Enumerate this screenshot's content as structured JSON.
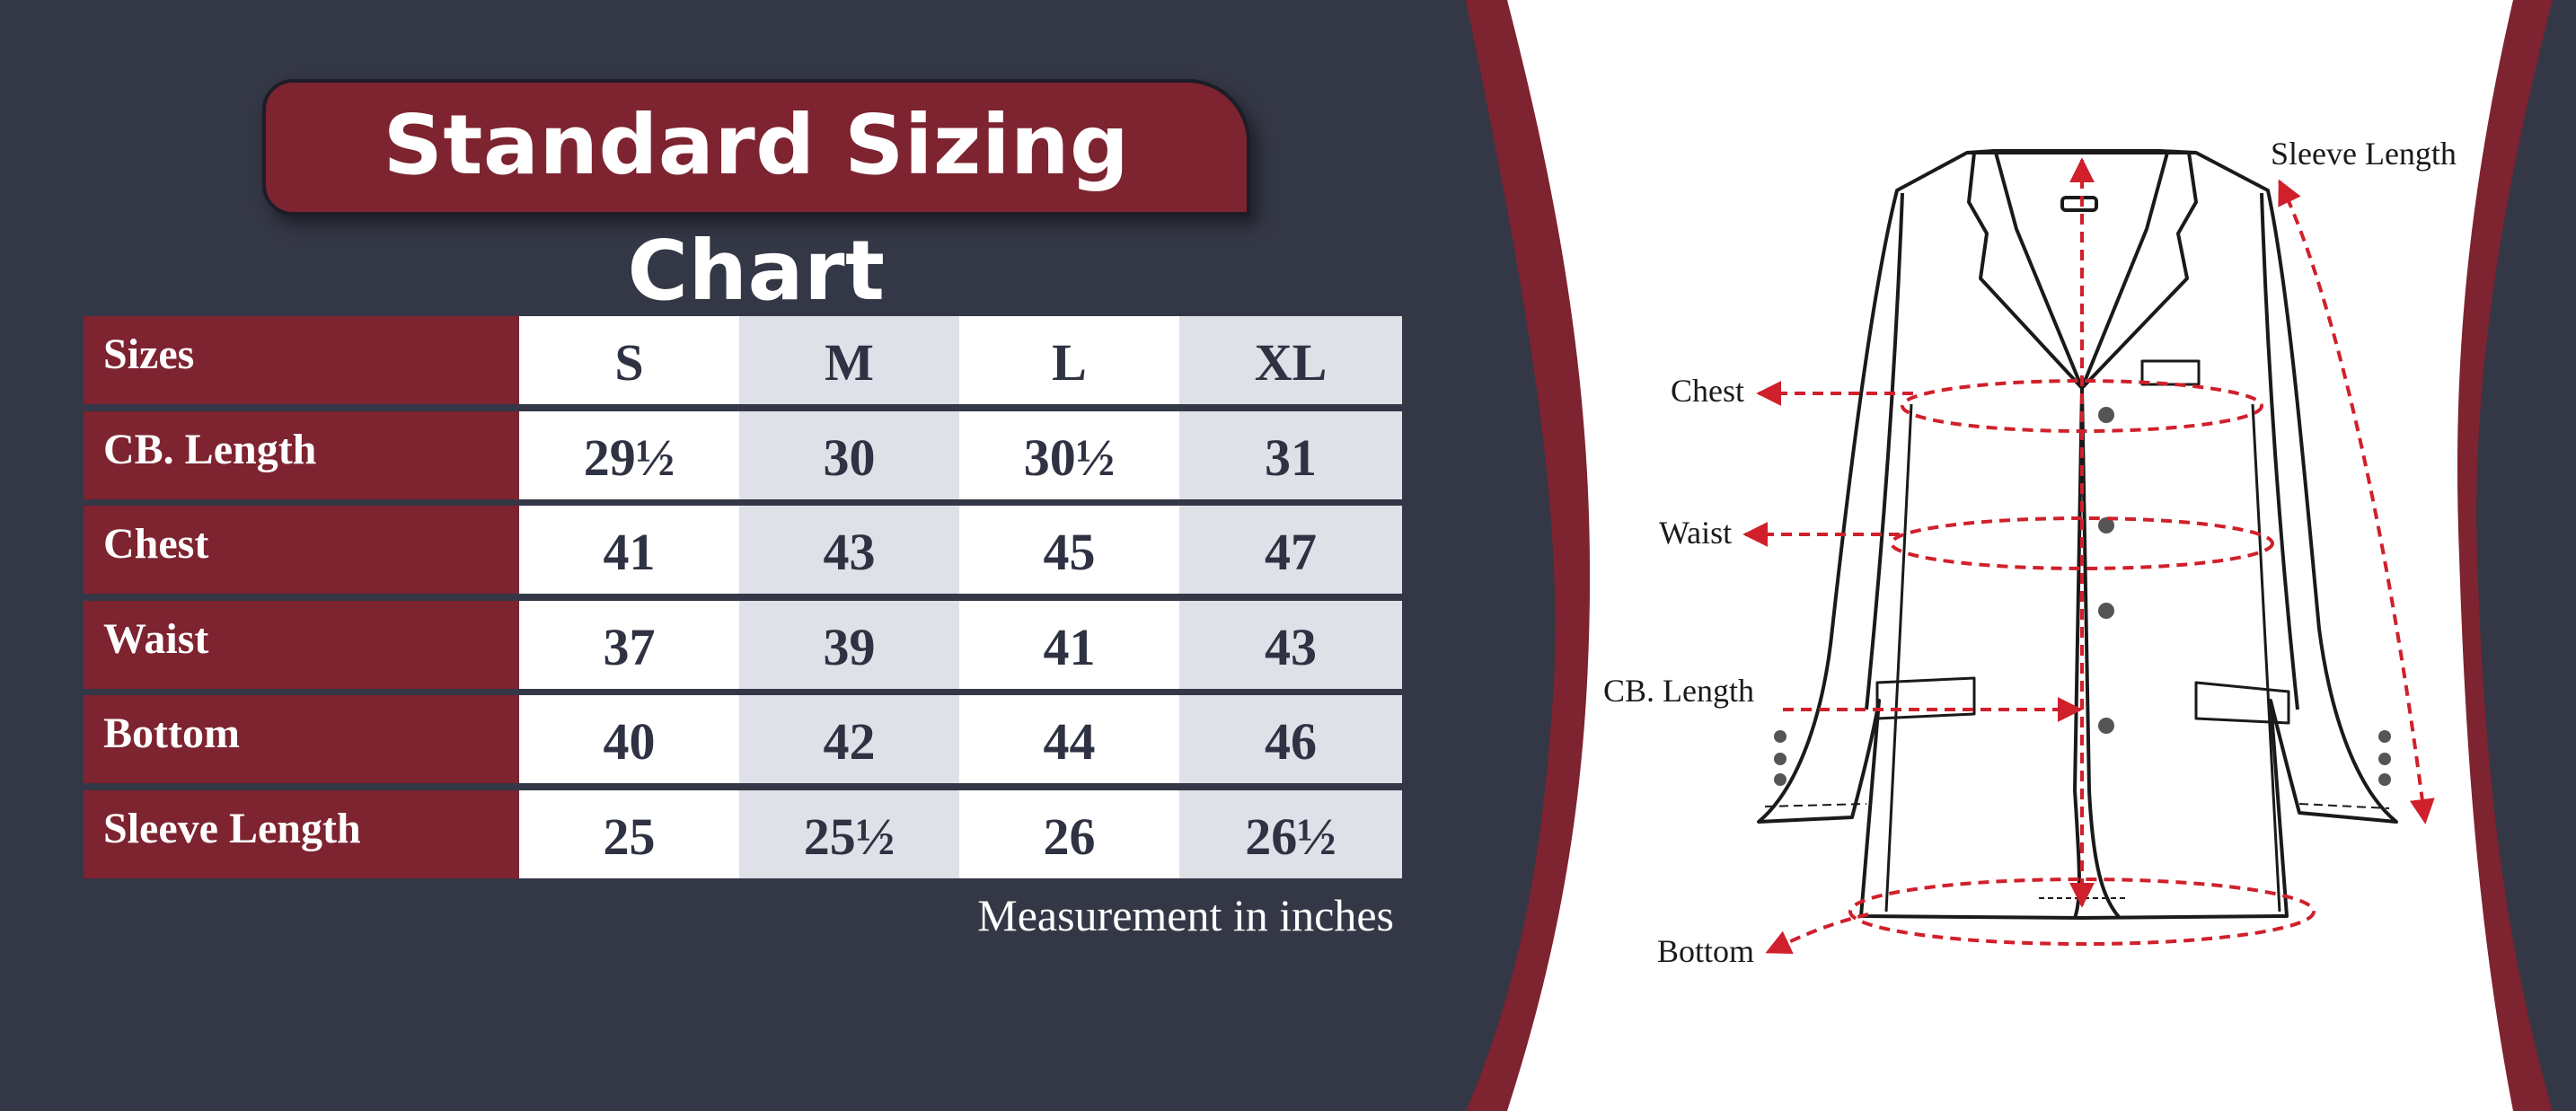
{
  "title": "Standard Sizing Chart",
  "table": {
    "header_label": "Sizes",
    "sizes": [
      "S",
      "M",
      "L",
      "XL"
    ],
    "rows": [
      {
        "label": "CB. Length",
        "values": [
          "29½",
          "30",
          "30½",
          "31"
        ]
      },
      {
        "label": "Chest",
        "values": [
          "41",
          "43",
          "45",
          "47"
        ]
      },
      {
        "label": "Waist",
        "values": [
          "37",
          "39",
          "41",
          "43"
        ]
      },
      {
        "label": "Bottom",
        "values": [
          "40",
          "42",
          "44",
          "46"
        ]
      },
      {
        "label": "Sleeve Length",
        "values": [
          "25",
          "25½",
          "26",
          "26½"
        ]
      }
    ]
  },
  "note": "Measurement in inches",
  "diagram": {
    "labels": {
      "sleeve": "Sleeve Length",
      "chest": "Chest",
      "waist": "Waist",
      "cb": "CB. Length",
      "bottom": "Bottom"
    }
  },
  "colors": {
    "background": "#343746",
    "accent": "#7e2330",
    "light_column": "#dfe0e8",
    "measure_line": "#d0202b"
  }
}
